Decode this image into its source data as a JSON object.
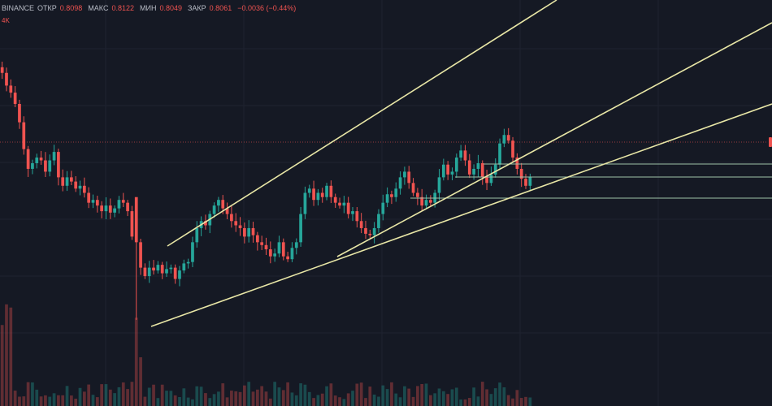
{
  "legend": {
    "exchange": "BINANCE",
    "open_label": "ОТКР",
    "open_value": "0.8098",
    "high_label": "МАКС",
    "high_value": "0.8122",
    "low_label": "МИН",
    "low_value": "0.8049",
    "close_label": "ЗАКР",
    "close_value": "0.8061",
    "change": "−0.0036 (−0.44%)"
  },
  "volume_label": "4K",
  "colors": {
    "background": "#151924",
    "up": "#26a69a",
    "down": "#ef5350",
    "trendline": "#e8e6a6",
    "price_line": "#ef5350"
  },
  "chart_data": {
    "type": "candlestick",
    "series_close": [
      0.88,
      0.871,
      0.866,
      0.858,
      0.845,
      0.826,
      0.812,
      0.816,
      0.82,
      0.818,
      0.81,
      0.818,
      0.824,
      0.806,
      0.8,
      0.806,
      0.803,
      0.798,
      0.8,
      0.795,
      0.788,
      0.79,
      0.786,
      0.782,
      0.786,
      0.781,
      0.784,
      0.79,
      0.788,
      0.782,
      0.764,
      0.76,
      0.742,
      0.736,
      0.742,
      0.74,
      0.744,
      0.738,
      0.741,
      0.742,
      0.734,
      0.74,
      0.745,
      0.746,
      0.76,
      0.77,
      0.775,
      0.772,
      0.78,
      0.786,
      0.79,
      0.784,
      0.78,
      0.775,
      0.772,
      0.77,
      0.764,
      0.77,
      0.765,
      0.76,
      0.758,
      0.755,
      0.75,
      0.752,
      0.76,
      0.75,
      0.748,
      0.756,
      0.76,
      0.78,
      0.795,
      0.798,
      0.79,
      0.795,
      0.792,
      0.8,
      0.792,
      0.788,
      0.786,
      0.788,
      0.78,
      0.782,
      0.775,
      0.77,
      0.766,
      0.765,
      0.77,
      0.78,
      0.788,
      0.794,
      0.792,
      0.798,
      0.806,
      0.81,
      0.802,
      0.795,
      0.792,
      0.786,
      0.79,
      0.788,
      0.795,
      0.806,
      0.815,
      0.808,
      0.81,
      0.82,
      0.825,
      0.818,
      0.808,
      0.812,
      0.816,
      0.806,
      0.802,
      0.808,
      0.815,
      0.83,
      0.836,
      0.832,
      0.82,
      0.812,
      0.805,
      0.8,
      0.806
    ],
    "lows": {
      "post_drop_low": 0.705,
      "pre_drop_low": 0.79
    },
    "trendlines": 3,
    "horizontal_levels": 3,
    "volume_visible": true
  }
}
